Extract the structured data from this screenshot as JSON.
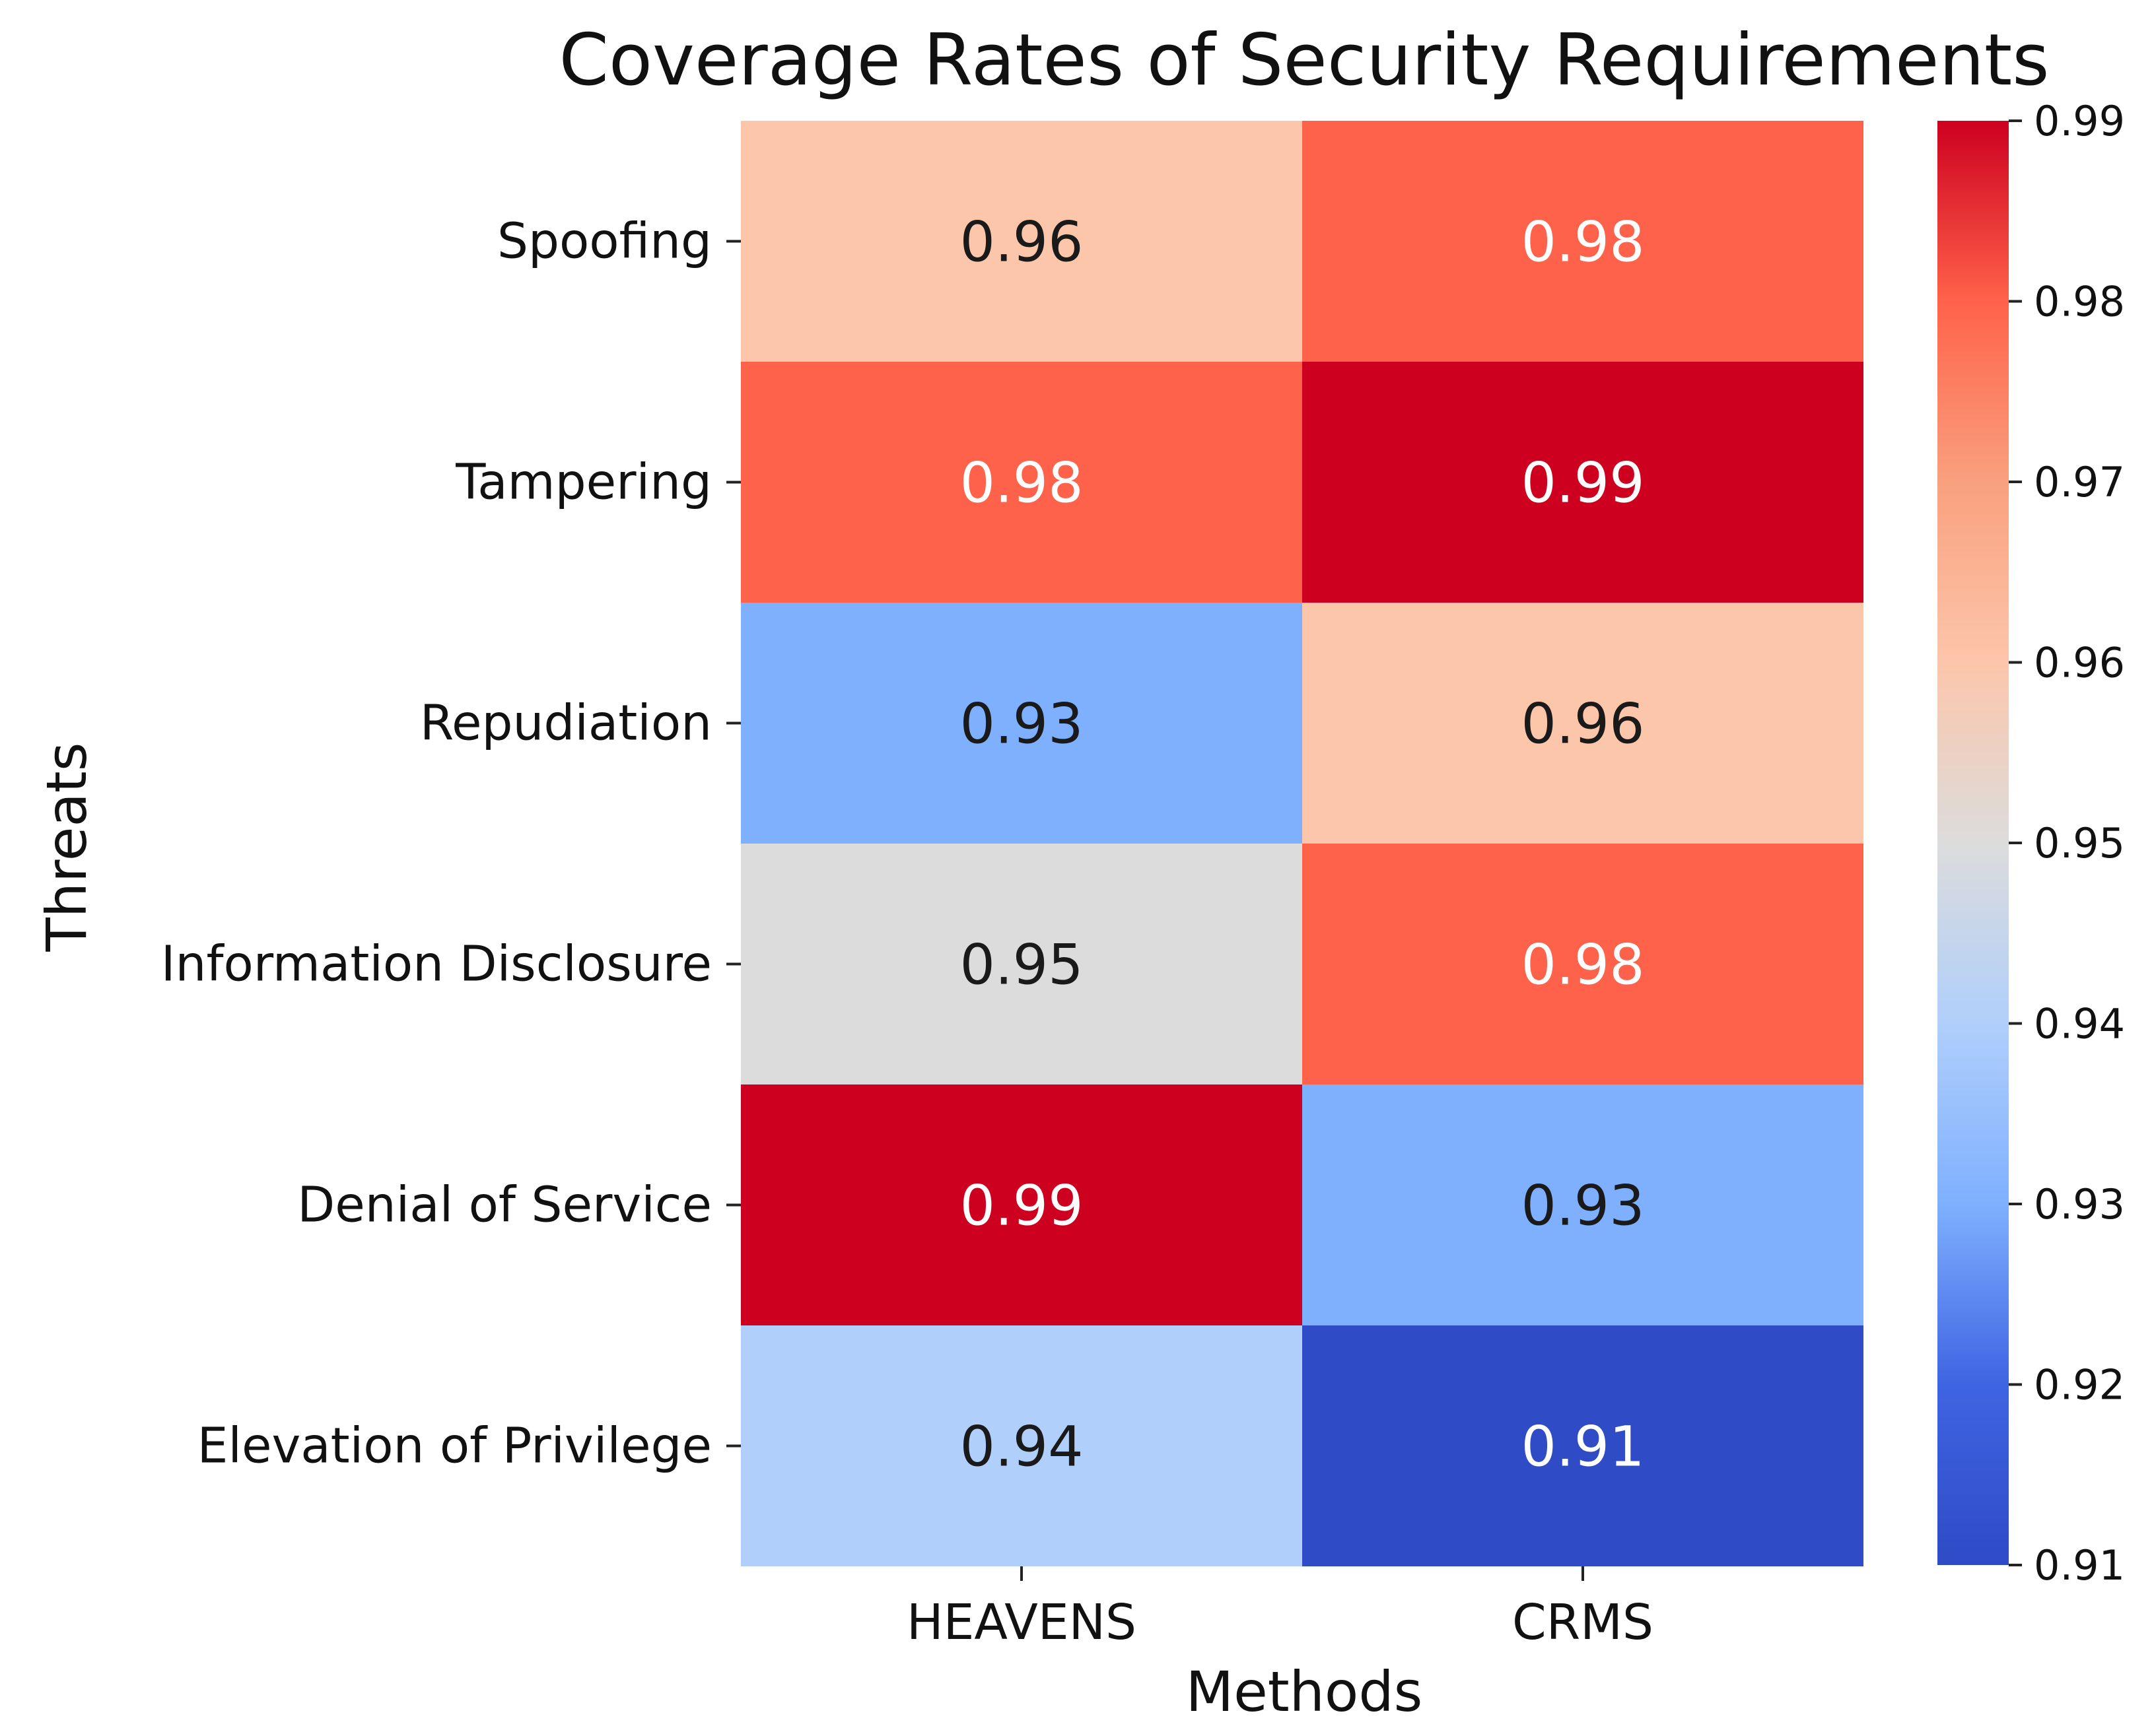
{
  "chart_data": {
    "type": "heatmap",
    "title": "Coverage Rates of Security Requirements",
    "xlabel": "Methods",
    "ylabel": "Threats",
    "x_categories": [
      "HEAVENS",
      "CRMS"
    ],
    "y_categories": [
      "Spoofing",
      "Tampering",
      "Repudiation",
      "Information Disclosure",
      "Denial of Service",
      "Elevation of Privilege"
    ],
    "values": [
      [
        0.96,
        0.98
      ],
      [
        0.98,
        0.99
      ],
      [
        0.93,
        0.96
      ],
      [
        0.95,
        0.98
      ],
      [
        0.99,
        0.93
      ],
      [
        0.94,
        0.91
      ]
    ],
    "value_labels": [
      [
        "0.96",
        "0.98"
      ],
      [
        "0.98",
        "0.99"
      ],
      [
        "0.93",
        "0.96"
      ],
      [
        "0.95",
        "0.98"
      ],
      [
        "0.99",
        "0.93"
      ],
      [
        "0.94",
        "0.91"
      ]
    ],
    "colormap": "coolwarm",
    "vmin": 0.91,
    "vmax": 0.99,
    "colorbar_ticks": [
      0.91,
      0.92,
      0.93,
      0.94,
      0.95,
      0.96,
      0.97,
      0.98,
      0.99
    ],
    "colorbar_tick_labels": [
      "0.91",
      "0.92",
      "0.93",
      "0.94",
      "0.95",
      "0.96",
      "0.97",
      "0.98",
      "0.99"
    ],
    "colorbar_stops": [
      {
        "value": 0.91,
        "color": "#2f4bc6"
      },
      {
        "value": 0.92,
        "color": "#3f64e3"
      },
      {
        "value": 0.93,
        "color": "#7fb0fe"
      },
      {
        "value": 0.94,
        "color": "#b0cffb"
      },
      {
        "value": 0.95,
        "color": "#dcdcdc"
      },
      {
        "value": 0.96,
        "color": "#fcc6ab"
      },
      {
        "value": 0.97,
        "color": "#f9a07e"
      },
      {
        "value": 0.98,
        "color": "#ff624a"
      },
      {
        "value": 0.99,
        "color": "#cd0020"
      }
    ],
    "text_colors": {
      "light": "#ffffff",
      "dark": "#1a1a1a"
    },
    "cell_text_light": [
      [
        false,
        true
      ],
      [
        true,
        true
      ],
      [
        false,
        false
      ],
      [
        false,
        true
      ],
      [
        true,
        false
      ],
      [
        false,
        true
      ]
    ]
  }
}
